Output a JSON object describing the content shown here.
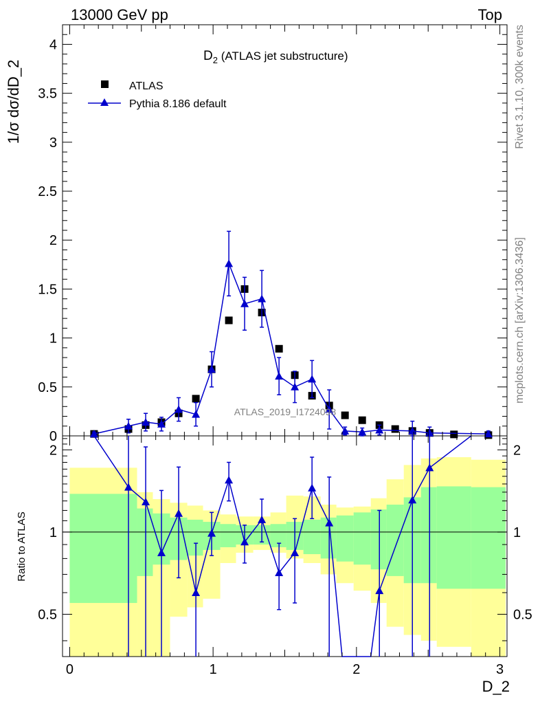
{
  "header": {
    "left": "13000 GeV pp",
    "right": "Top"
  },
  "side_labels": {
    "rivet": "Rivet 3.1.10,  300k events",
    "mcplots": "mcplots.cern.ch [arXiv:1306.3436]"
  },
  "top_panel": {
    "title_main": "D",
    "title_sub": "2",
    "title_rest": " (ATLAS jet substructure)",
    "ylabel": "1/σ dσ/dD_2",
    "watermark": "ATLAS_2019_I1724098"
  },
  "legend": {
    "data_label": "ATLAS",
    "mc_label": "Pythia 8.186 default"
  },
  "bottom_panel": {
    "ylabel": "Ratio to ATLAS"
  },
  "xaxis": {
    "label": "D_2"
  },
  "colors": {
    "mc": "#0000cc",
    "band_inner": "#99ff99",
    "band_outer": "#ffff99",
    "data": "#000000"
  },
  "chart_data": {
    "type": "scatter",
    "xlim": [
      -0.05,
      3.05
    ],
    "main_ylim": [
      0,
      4.2
    ],
    "ratio_ylim": [
      0.35,
      2.25
    ],
    "x_ticks": [
      "0",
      "1",
      "2",
      "3"
    ],
    "main_y_ticks": [
      "0",
      "0.5",
      "1",
      "1.5",
      "2",
      "2.5",
      "3",
      "3.5",
      "4"
    ],
    "ratio_y_ticks": [
      "0.5",
      "1",
      "2"
    ],
    "bin_edges": [
      0,
      0.35,
      0.47,
      0.58,
      0.7,
      0.82,
      0.93,
      1.05,
      1.16,
      1.28,
      1.4,
      1.51,
      1.63,
      1.75,
      1.86,
      1.98,
      2.1,
      2.21,
      2.33,
      2.45,
      2.56,
      2.8,
      3.04
    ],
    "series": [
      {
        "name": "ATLAS",
        "x": [
          0.17,
          0.41,
          0.53,
          0.64,
          0.76,
          0.88,
          0.99,
          1.11,
          1.22,
          1.34,
          1.46,
          1.57,
          1.69,
          1.81,
          1.92,
          2.04,
          2.16,
          2.27,
          2.39,
          2.51,
          2.68,
          2.92
        ],
        "y": [
          0.02,
          0.07,
          0.11,
          0.14,
          0.23,
          0.38,
          0.68,
          1.18,
          1.5,
          1.26,
          0.89,
          0.62,
          0.41,
          0.31,
          0.21,
          0.16,
          0.11,
          0.07,
          0.05,
          0.03,
          0.015,
          0.008
        ]
      },
      {
        "name": "Pythia 8.186 default",
        "x": [
          0.17,
          0.41,
          0.53,
          0.64,
          0.76,
          0.88,
          0.99,
          1.11,
          1.22,
          1.34,
          1.46,
          1.57,
          1.69,
          1.81,
          1.92,
          2.04,
          2.16,
          2.39,
          2.51,
          2.92
        ],
        "y": [
          0.02,
          0.1,
          0.14,
          0.12,
          0.27,
          0.22,
          0.68,
          1.76,
          1.35,
          1.4,
          0.61,
          0.5,
          0.58,
          0.27,
          0.05,
          0.04,
          0.06,
          0.05,
          0.03,
          0.02
        ],
        "yerr": [
          0.02,
          0.07,
          0.09,
          0.07,
          0.12,
          0.12,
          0.18,
          0.33,
          0.27,
          0.29,
          0.19,
          0.16,
          0.19,
          0.2,
          0.04,
          0.04,
          0.05,
          0.1,
          0.06,
          0.03
        ]
      }
    ],
    "ratio": {
      "x": [
        0.41,
        0.53,
        0.64,
        0.76,
        0.88,
        0.99,
        1.11,
        1.22,
        1.34,
        1.46,
        1.57,
        1.69,
        1.81,
        2.16,
        2.39,
        2.51
      ],
      "y": [
        1.46,
        1.29,
        0.84,
        1.17,
        0.6,
        0.99,
        1.55,
        0.92,
        1.11,
        0.71,
        0.84,
        1.45,
        1.08,
        0.61,
        1.31,
        1.72
      ],
      "ylo": [
        0.35,
        0.35,
        0.35,
        0.68,
        0.35,
        0.82,
        1.3,
        0.77,
        0.92,
        0.52,
        0.55,
        1.12,
        0.35,
        0.35,
        0.35,
        0.35
      ],
      "yhi": [
        2.25,
        2.05,
        1.42,
        1.73,
        0.91,
        1.18,
        1.8,
        1.06,
        1.32,
        0.91,
        1.12,
        1.88,
        1.59,
        1.2,
        2.25,
        2.25
      ],
      "line_x": [
        0.17,
        0.41,
        0.53,
        0.64,
        0.76,
        0.88,
        0.99,
        1.11,
        1.22,
        1.34,
        1.46,
        1.57,
        1.69,
        1.81,
        1.9,
        2.1,
        2.16,
        2.39,
        2.51,
        2.8
      ],
      "line_y": [
        2.25,
        1.46,
        1.29,
        0.84,
        1.17,
        0.6,
        0.99,
        1.55,
        0.92,
        1.11,
        0.71,
        0.84,
        1.45,
        1.08,
        0.35,
        0.35,
        0.61,
        1.31,
        1.72,
        2.25
      ],
      "band_inner_lo": [
        0.55,
        0.55,
        0.69,
        0.76,
        0.79,
        0.82,
        0.86,
        0.88,
        0.9,
        0.9,
        0.88,
        0.86,
        0.83,
        0.8,
        0.78,
        0.76,
        0.73,
        0.69,
        0.65,
        0.65,
        0.62,
        0.62
      ],
      "band_inner_hi": [
        1.38,
        1.38,
        1.22,
        1.17,
        1.13,
        1.11,
        1.09,
        1.07,
        1.06,
        1.06,
        1.07,
        1.09,
        1.11,
        1.13,
        1.15,
        1.18,
        1.21,
        1.26,
        1.34,
        1.46,
        1.47,
        1.46
      ],
      "band_outer_lo": [
        0.35,
        0.35,
        0.35,
        0.35,
        0.49,
        0.53,
        0.57,
        0.77,
        0.84,
        0.86,
        0.84,
        0.8,
        0.77,
        0.7,
        0.65,
        0.61,
        0.55,
        0.45,
        0.42,
        0.4,
        0.38,
        0.35
      ],
      "band_outer_hi": [
        1.72,
        1.72,
        1.4,
        1.32,
        1.28,
        1.25,
        1.2,
        1.16,
        1.14,
        1.14,
        1.18,
        1.36,
        1.35,
        1.26,
        1.23,
        1.24,
        1.33,
        1.56,
        1.76,
        1.86,
        1.88,
        1.84
      ]
    }
  }
}
